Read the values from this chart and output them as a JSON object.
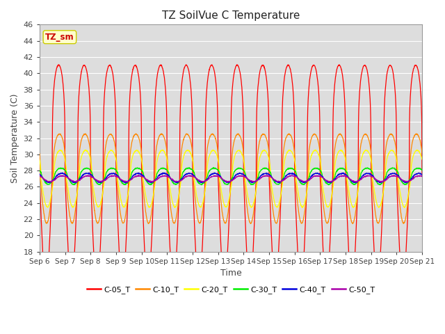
{
  "title": "TZ SoilVue C Temperature",
  "xlabel": "Time",
  "ylabel": "Soil Temperature (C)",
  "ylim": [
    18,
    46
  ],
  "background_color": "#dddddd",
  "plot_bg_color": "#dddddd",
  "annotation_text": "TZ_sm",
  "annotation_bg": "#ffffcc",
  "annotation_border": "#cccc00",
  "annotation_text_color": "#cc0000",
  "series": [
    {
      "name": "C-05_T",
      "color": "#ff0000",
      "amplitude": 13.5,
      "baseline": 27.5,
      "phase_delay": 0.0,
      "sharpness": 4.0
    },
    {
      "name": "C-10_T",
      "color": "#ff8800",
      "amplitude": 5.5,
      "baseline": 27.0,
      "phase_delay": 0.03,
      "sharpness": 3.0
    },
    {
      "name": "C-20_T",
      "color": "#ffff00",
      "amplitude": 3.5,
      "baseline": 27.0,
      "phase_delay": 0.06,
      "sharpness": 2.5
    },
    {
      "name": "C-30_T",
      "color": "#00ee00",
      "amplitude": 1.0,
      "baseline": 27.3,
      "phase_delay": 0.09,
      "sharpness": 2.0
    },
    {
      "name": "C-40_T",
      "color": "#0000dd",
      "amplitude": 0.55,
      "baseline": 27.1,
      "phase_delay": 0.12,
      "sharpness": 1.5
    },
    {
      "name": "C-50_T",
      "color": "#aa00aa",
      "amplitude": 0.35,
      "baseline": 27.0,
      "phase_delay": 0.15,
      "sharpness": 1.5
    }
  ],
  "xtick_labels": [
    "Sep 6",
    "Sep 7",
    "Sep 8",
    "Sep 9",
    "Sep 10",
    "Sep 11",
    "Sep 12",
    "Sep 13",
    "Sep 14",
    "Sep 15",
    "Sep 16",
    "Sep 17",
    "Sep 18",
    "Sep 19",
    "Sep 20",
    "Sep 21"
  ],
  "ytick_labels": [
    18,
    20,
    22,
    24,
    26,
    28,
    30,
    32,
    34,
    36,
    38,
    40,
    42,
    44,
    46
  ],
  "grid_color": "#ffffff",
  "legend_entries": [
    {
      "label": "C-05_T",
      "color": "#ff0000"
    },
    {
      "label": "C-10_T",
      "color": "#ff8800"
    },
    {
      "label": "C-20_T",
      "color": "#ffff00"
    },
    {
      "label": "C-30_T",
      "color": "#00ee00"
    },
    {
      "label": "C-40_T",
      "color": "#0000dd"
    },
    {
      "label": "C-50_T",
      "color": "#aa00aa"
    }
  ]
}
